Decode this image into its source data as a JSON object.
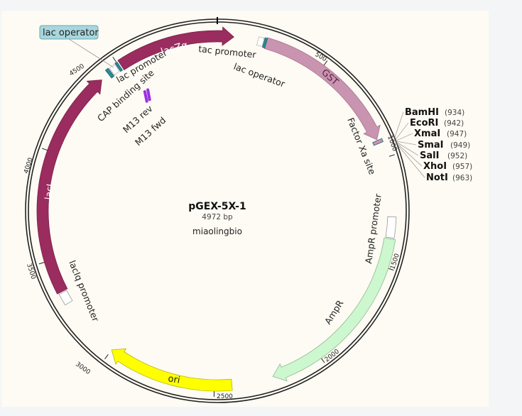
{
  "plasmid": {
    "name": "pGEX-5X-1",
    "length_label": "4972 bp",
    "length": 4972,
    "source": "miaolingbio"
  },
  "features": [
    {
      "name": "lacZα",
      "start": 4510,
      "end": 75,
      "color": "#9b2c5f",
      "type": "arrow"
    },
    {
      "name": "GST",
      "start": 224,
      "end": 911,
      "color": "#c994b0",
      "type": "arrow"
    },
    {
      "name": "AmpR",
      "start": 1370,
      "end": 2230,
      "color": "#ccf7cf",
      "type": "arrow"
    },
    {
      "name": "ori",
      "start": 2420,
      "end": 3000,
      "color": "#ffff00",
      "type": "arrow"
    },
    {
      "name": "lacI",
      "start": 3350,
      "end": 4400,
      "color": "#9b2c5f",
      "type": "arrow"
    }
  ],
  "small_features": [
    {
      "name": "tac promoter",
      "start": 185,
      "end": 210,
      "color": "#ffffff",
      "type": "promoter"
    },
    {
      "name": "lac operator",
      "start": 213,
      "end": 224,
      "color": "#2a8a99",
      "type": "box"
    },
    {
      "name": "Factor Xa site",
      "start": 915,
      "end": 930,
      "color": "#c994b0",
      "type": "box"
    },
    {
      "name": "AmpR promoter",
      "start": 1270,
      "end": 1365,
      "color": "#ffffff",
      "type": "promoter"
    },
    {
      "name": "lacIq promoter",
      "start": 3290,
      "end": 3345,
      "color": "#ffffff",
      "type": "promoter"
    },
    {
      "name": "CAP binding site",
      "start": 4440,
      "end": 4455,
      "color": "#2a8a99",
      "type": "box"
    },
    {
      "name": "lac promoter",
      "start": 4460,
      "end": 4488,
      "color": "#ffffff",
      "type": "promoter"
    },
    {
      "name": "lac operator",
      "start": 4492,
      "end": 4503,
      "color": "#2a8a99",
      "type": "box"
    }
  ],
  "primers": [
    {
      "name": "M13 rev",
      "pos": 4530
    },
    {
      "name": "M13 fwd",
      "pos": 4550
    }
  ],
  "labels": {
    "lacZa": "lacZα",
    "gst": "GST",
    "ampr": "AmpR",
    "ori": "ori",
    "laci": "lacI",
    "tac_promoter": "tac promoter",
    "lac_operator": "lac operator",
    "lac_operator_highlight": "lac operator",
    "lac_promoter": "lac promoter",
    "cap_site": "CAP binding site",
    "m13_rev": "M13 rev",
    "m13_fwd": "M13 fwd",
    "factor_xa": "Factor Xa site",
    "ampr_promoter": "AmpR promoter",
    "laciq_promoter": "lacIq promoter"
  },
  "ticks": [
    "500",
    "1000",
    "1500",
    "2000",
    "2500",
    "3000",
    "3500",
    "4000",
    "4500"
  ],
  "restriction_sites": [
    {
      "enzyme": "BamHI",
      "pos": "(934)"
    },
    {
      "enzyme": "EcoRI",
      "pos": "(942)"
    },
    {
      "enzyme": "XmaI",
      "pos": "(947)"
    },
    {
      "enzyme": "SmaI",
      "pos": "(949)"
    },
    {
      "enzyme": "SalI",
      "pos": "(952)"
    },
    {
      "enzyme": "XhoI",
      "pos": "(957)"
    },
    {
      "enzyme": "NotI",
      "pos": "(963)"
    }
  ]
}
